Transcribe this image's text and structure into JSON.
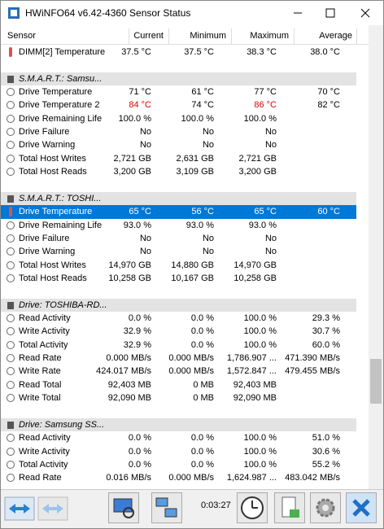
{
  "window": {
    "title": "HWiNFO64 v6.42-4360 Sensor Status"
  },
  "columns": [
    "Sensor",
    "Current",
    "Minimum",
    "Maximum",
    "Average"
  ],
  "rows": [
    {
      "label": "DIMM[2] Temperature",
      "icon": "thermometer",
      "cells": [
        "37.5 °C",
        "37.5 °C",
        "38.3 °C",
        "38.0 °C"
      ]
    },
    {
      "group": "S.M.A.R.T.: Samsu..."
    },
    {
      "label": "Drive Temperature",
      "cells": [
        "71 °C",
        "61 °C",
        "77 °C",
        "70 °C"
      ]
    },
    {
      "label": "Drive Temperature 2",
      "cells": [
        "84 °C",
        "74 °C",
        "86 °C",
        "82 °C"
      ],
      "alert_columns": [
        0,
        2
      ]
    },
    {
      "label": "Drive Remaining Life",
      "cells": [
        "100.0 %",
        "100.0 %",
        "100.0 %"
      ]
    },
    {
      "label": "Drive Failure",
      "cells": [
        "No",
        "No",
        "No"
      ]
    },
    {
      "label": "Drive Warning",
      "cells": [
        "No",
        "No",
        "No"
      ]
    },
    {
      "label": "Total Host Writes",
      "cells": [
        "2,721 GB",
        "2,631 GB",
        "2,721 GB"
      ]
    },
    {
      "label": "Total Host Reads",
      "cells": [
        "3,200 GB",
        "3,109 GB",
        "3,200 GB"
      ]
    },
    {
      "group": "S.M.A.R.T.: TOSHI..."
    },
    {
      "label": "Drive Temperature",
      "icon": "thermometer",
      "selected": true,
      "cells": [
        "65 °C",
        "56 °C",
        "65 °C",
        "60 °C"
      ]
    },
    {
      "label": "Drive Remaining Life",
      "cells": [
        "93.0 %",
        "93.0 %",
        "93.0 %"
      ]
    },
    {
      "label": "Drive Failure",
      "cells": [
        "No",
        "No",
        "No"
      ]
    },
    {
      "label": "Drive Warning",
      "cells": [
        "No",
        "No",
        "No"
      ]
    },
    {
      "label": "Total Host Writes",
      "cells": [
        "14,970 GB",
        "14,880 GB",
        "14,970 GB"
      ]
    },
    {
      "label": "Total Host Reads",
      "cells": [
        "10,258 GB",
        "10,167 GB",
        "10,258 GB"
      ]
    },
    {
      "group": "Drive: TOSHIBA-RD..."
    },
    {
      "label": "Read Activity",
      "cells": [
        "0.0 %",
        "0.0 %",
        "100.0 %",
        "29.3 %"
      ]
    },
    {
      "label": "Write Activity",
      "cells": [
        "32.9 %",
        "0.0 %",
        "100.0 %",
        "30.7 %"
      ]
    },
    {
      "label": "Total Activity",
      "cells": [
        "32.9 %",
        "0.0 %",
        "100.0 %",
        "60.0 %"
      ]
    },
    {
      "label": "Read Rate",
      "cells": [
        "0.000 MB/s",
        "0.000 MB/s",
        "1,786.907 ...",
        "471.390 MB/s"
      ]
    },
    {
      "label": "Write Rate",
      "cells": [
        "424.017 MB/s",
        "0.000 MB/s",
        "1,572.847 ...",
        "479.455 MB/s"
      ]
    },
    {
      "label": "Read Total",
      "cells": [
        "92,403 MB",
        "0 MB",
        "92,403 MB"
      ]
    },
    {
      "label": "Write Total",
      "cells": [
        "92,090 MB",
        "0 MB",
        "92,090 MB"
      ]
    },
    {
      "group": "Drive: Samsung SS..."
    },
    {
      "label": "Read Activity",
      "cells": [
        "0.0 %",
        "0.0 %",
        "100.0 %",
        "51.0 %"
      ]
    },
    {
      "label": "Write Activity",
      "cells": [
        "0.0 %",
        "0.0 %",
        "100.0 %",
        "30.6 %"
      ]
    },
    {
      "label": "Total Activity",
      "cells": [
        "0.0 %",
        "0.0 %",
        "100.0 %",
        "55.2 %"
      ]
    },
    {
      "label": "Read Rate",
      "cells": [
        "0.016 MB/s",
        "0.000 MB/s",
        "1,624.987 ...",
        "483.042 MB/s"
      ]
    }
  ],
  "toolbar": {
    "timer": "0:03:27"
  }
}
